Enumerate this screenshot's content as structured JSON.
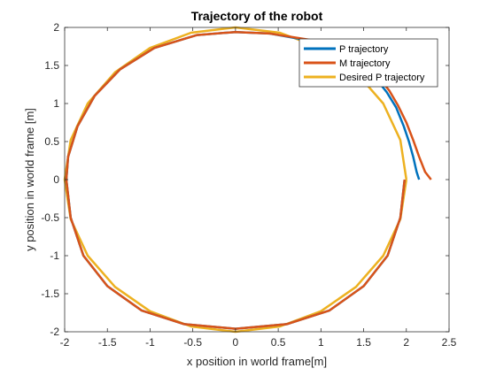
{
  "chart_data": {
    "type": "line",
    "title": "Trajectory of the robot",
    "xlabel": "x position in world frame[m]",
    "ylabel": "y position in world frame [m]",
    "xlim": [
      -2,
      2.5
    ],
    "ylim": [
      -2,
      2
    ],
    "xticks": [
      "-2",
      "-1.5",
      "-1",
      "-0.5",
      "0",
      "0.5",
      "1",
      "1.5",
      "2",
      "2.5"
    ],
    "yticks": [
      "-2",
      "-1.5",
      "-1",
      "-0.5",
      "0",
      "0.5",
      "1",
      "1.5",
      "2"
    ],
    "grid": false,
    "legend_position": "top-right",
    "series": [
      {
        "name": "P trajectory",
        "color": "#0072BD",
        "x": [
          2.15,
          2.12,
          2.08,
          2.03,
          1.97,
          1.88,
          1.77,
          1.65,
          1.5,
          1.25,
          0.85,
          0.4,
          0.0,
          -0.45,
          -0.95,
          -1.35,
          -1.65,
          -1.85,
          -1.96,
          -1.98,
          -1.93,
          -1.78,
          -1.5,
          -1.1,
          -0.6,
          0.0,
          0.6,
          1.1,
          1.5,
          1.78,
          1.93,
          1.98
        ],
        "y": [
          0.0,
          0.1,
          0.3,
          0.5,
          0.7,
          0.95,
          1.15,
          1.32,
          1.47,
          1.65,
          1.83,
          1.92,
          1.94,
          1.9,
          1.73,
          1.45,
          1.1,
          0.7,
          0.3,
          0.0,
          -0.5,
          -1.0,
          -1.4,
          -1.72,
          -1.9,
          -1.96,
          -1.9,
          -1.72,
          -1.4,
          -1.0,
          -0.5,
          0.0
        ]
      },
      {
        "name": "M trajectory",
        "color": "#D95319",
        "x": [
          2.29,
          2.22,
          2.15,
          2.08,
          2.0,
          1.9,
          1.8,
          1.68,
          1.52,
          1.26,
          0.86,
          0.4,
          0.0,
          -0.45,
          -0.95,
          -1.35,
          -1.65,
          -1.85,
          -1.96,
          -1.98,
          -1.93,
          -1.78,
          -1.5,
          -1.1,
          -0.6,
          0.0,
          0.6,
          1.1,
          1.5,
          1.78,
          1.93,
          1.98
        ],
        "y": [
          0.0,
          0.1,
          0.3,
          0.52,
          0.75,
          0.98,
          1.17,
          1.34,
          1.48,
          1.66,
          1.84,
          1.92,
          1.94,
          1.9,
          1.73,
          1.45,
          1.1,
          0.7,
          0.3,
          0.0,
          -0.5,
          -1.0,
          -1.4,
          -1.72,
          -1.9,
          -1.96,
          -1.9,
          -1.72,
          -1.4,
          -1.0,
          -0.5,
          0.0
        ]
      },
      {
        "name": "Desired P trajectory",
        "color": "#EDB120",
        "x": [
          2.0,
          1.93,
          1.73,
          1.41,
          1.0,
          0.52,
          0.0,
          -0.52,
          -1.0,
          -1.41,
          -1.73,
          -1.93,
          -2.0,
          -1.93,
          -1.73,
          -1.41,
          -1.0,
          -0.52,
          0.0,
          0.52,
          1.0,
          1.41,
          1.73,
          1.93,
          2.0
        ],
        "y": [
          0.0,
          0.52,
          1.0,
          1.41,
          1.73,
          1.93,
          2.0,
          1.93,
          1.73,
          1.41,
          1.0,
          0.52,
          0.0,
          -0.52,
          -1.0,
          -1.41,
          -1.73,
          -1.93,
          -2.0,
          -1.93,
          -1.73,
          -1.41,
          -1.0,
          -0.52,
          0.0
        ]
      }
    ]
  }
}
